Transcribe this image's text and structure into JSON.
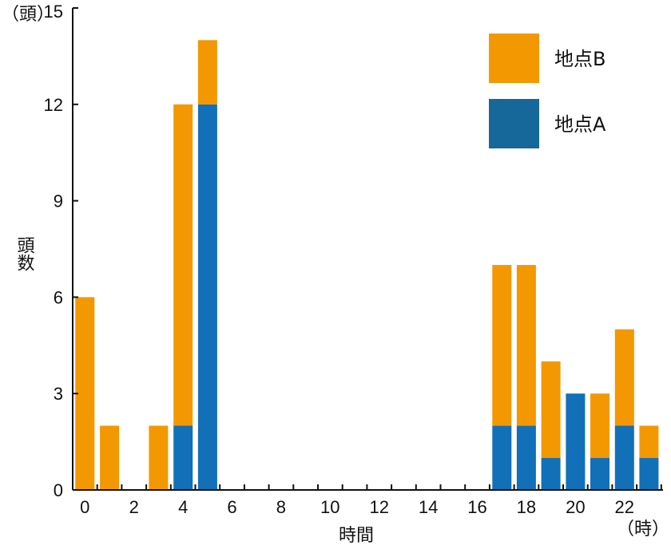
{
  "chart_data": {
    "type": "bar",
    "stacked": true,
    "x": [
      0,
      1,
      2,
      3,
      4,
      5,
      6,
      7,
      8,
      9,
      10,
      11,
      12,
      13,
      14,
      15,
      16,
      17,
      18,
      19,
      20,
      21,
      22,
      23
    ],
    "xticks": [
      "0",
      "2",
      "4",
      "6",
      "8",
      "10",
      "12",
      "14",
      "16",
      "18",
      "20",
      "22"
    ],
    "yticks": [
      "0",
      "3",
      "6",
      "9",
      "12",
      "15"
    ],
    "ylim": [
      0,
      15
    ],
    "series": [
      {
        "name": "地点A",
        "color": "#1170b8",
        "values": [
          0,
          0,
          0,
          0,
          2,
          12,
          0,
          0,
          0,
          0,
          0,
          0,
          0,
          0,
          0,
          0,
          0,
          2,
          2,
          1,
          3,
          1,
          2,
          1
        ]
      },
      {
        "name": "地点B",
        "color": "#f39800",
        "values": [
          6,
          2,
          0,
          2,
          10,
          2,
          0,
          0,
          0,
          0,
          0,
          0,
          0,
          0,
          0,
          0,
          0,
          5,
          5,
          3,
          0,
          2,
          3,
          1
        ]
      }
    ],
    "legend": [
      {
        "label": "地点B",
        "color": "#f39800"
      },
      {
        "label": "地点A",
        "color": "#16689a"
      }
    ],
    "legend_position": "top-right",
    "ylabel": "頭数",
    "y_unit": "（頭）",
    "xlabel": "時間",
    "x_unit": "（時）"
  }
}
